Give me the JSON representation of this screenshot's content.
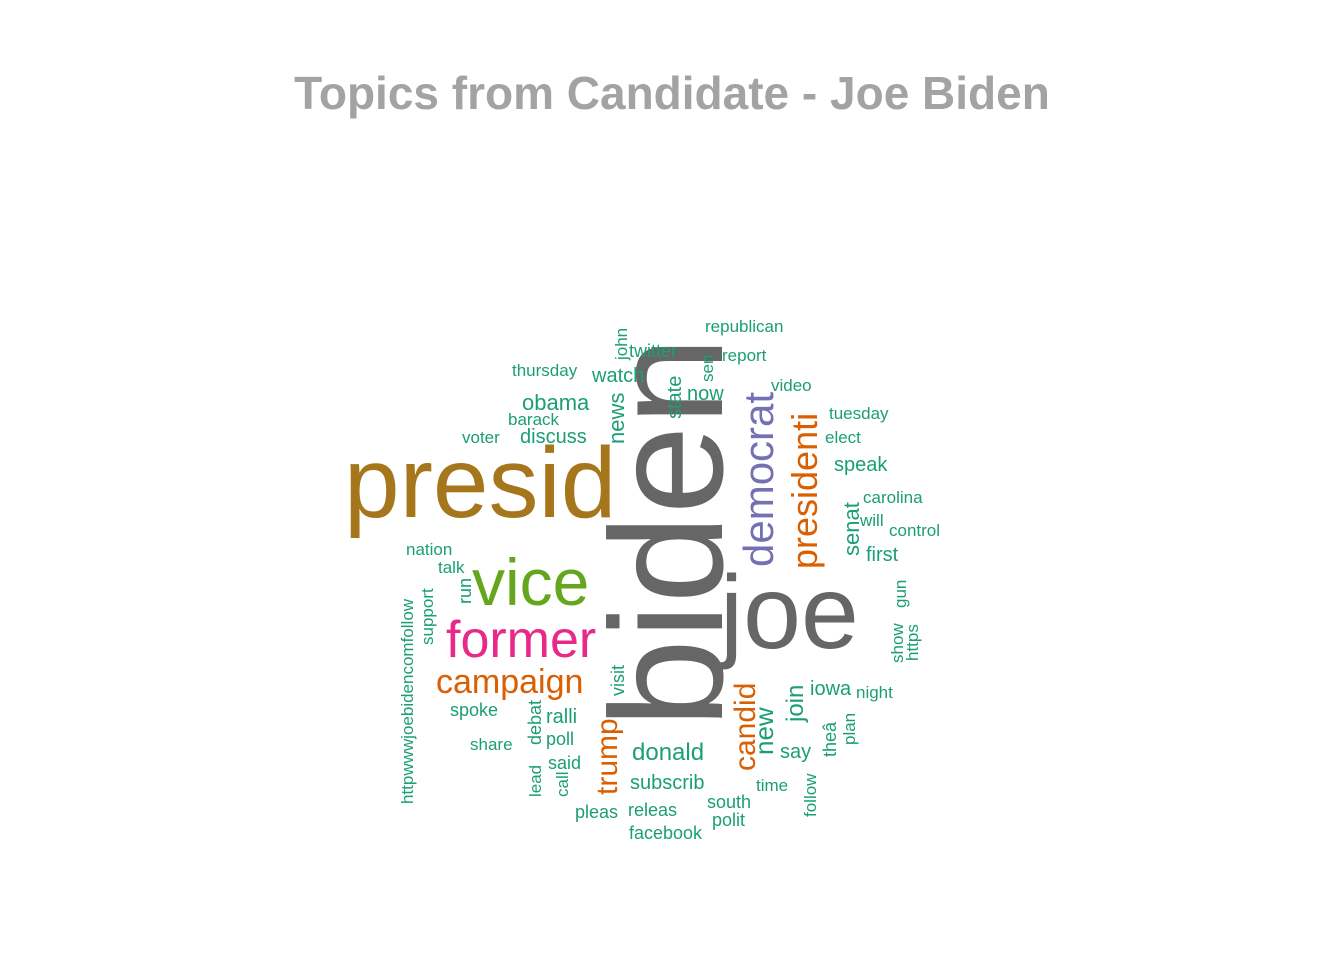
{
  "title": "Topics from Candidate - Joe Biden",
  "chart_data": {
    "type": "wordcloud",
    "title": "Topics from Candidate - Joe Biden",
    "palette": {
      "teal": "#1b9e77",
      "orange": "#d95f02",
      "purple": "#7570b3",
      "magenta": "#e7298a",
      "green": "#66a61e",
      "gold": "#a6761d",
      "gray": "#666666"
    },
    "words": [
      {
        "text": "biden",
        "color": "gray",
        "rotated": true
      },
      {
        "text": "joe",
        "color": "gray",
        "rotated": false
      },
      {
        "text": "presid",
        "color": "gold",
        "rotated": false
      },
      {
        "text": "vice",
        "color": "green",
        "rotated": false
      },
      {
        "text": "former",
        "color": "magenta",
        "rotated": false
      },
      {
        "text": "democrat",
        "color": "purple",
        "rotated": true
      },
      {
        "text": "presidenti",
        "color": "orange",
        "rotated": true
      },
      {
        "text": "campaign",
        "color": "orange",
        "rotated": false
      },
      {
        "text": "trump",
        "color": "orange",
        "rotated": true
      },
      {
        "text": "candid",
        "color": "orange",
        "rotated": true
      },
      {
        "text": "new",
        "color": "teal",
        "rotated": true
      },
      {
        "text": "donald",
        "color": "teal",
        "rotated": false
      },
      {
        "text": "join",
        "color": "teal",
        "rotated": true
      },
      {
        "text": "obama",
        "color": "teal",
        "rotated": false
      },
      {
        "text": "news",
        "color": "teal",
        "rotated": true
      },
      {
        "text": "senat",
        "color": "teal",
        "rotated": true
      },
      {
        "text": "discuss",
        "color": "teal",
        "rotated": false
      },
      {
        "text": "subscrib",
        "color": "teal",
        "rotated": false
      },
      {
        "text": "ralli",
        "color": "teal",
        "rotated": false
      },
      {
        "text": "watch",
        "color": "teal",
        "rotated": false
      },
      {
        "text": "state",
        "color": "teal",
        "rotated": true
      },
      {
        "text": "speak",
        "color": "teal",
        "rotated": false
      },
      {
        "text": "first",
        "color": "teal",
        "rotated": false
      },
      {
        "text": "say",
        "color": "teal",
        "rotated": false
      },
      {
        "text": "iowa",
        "color": "teal",
        "rotated": false
      },
      {
        "text": "now",
        "color": "teal",
        "rotated": false
      },
      {
        "text": "twitter",
        "color": "teal",
        "rotated": false
      },
      {
        "text": "poll",
        "color": "teal",
        "rotated": false
      },
      {
        "text": "said",
        "color": "teal",
        "rotated": false
      },
      {
        "text": "pleas",
        "color": "teal",
        "rotated": false
      },
      {
        "text": "releas",
        "color": "teal",
        "rotated": false
      },
      {
        "text": "south",
        "color": "teal",
        "rotated": false
      },
      {
        "text": "polit",
        "color": "teal",
        "rotated": false
      },
      {
        "text": "facebook",
        "color": "teal",
        "rotated": false
      },
      {
        "text": "visit",
        "color": "teal",
        "rotated": true
      },
      {
        "text": "debat",
        "color": "teal",
        "rotated": true
      },
      {
        "text": "lead",
        "color": "teal",
        "rotated": true
      },
      {
        "text": "call",
        "color": "teal",
        "rotated": true
      },
      {
        "text": "spoke",
        "color": "teal",
        "rotated": false
      },
      {
        "text": "share",
        "color": "teal",
        "rotated": false
      },
      {
        "text": "run",
        "color": "teal",
        "rotated": true
      },
      {
        "text": "talk",
        "color": "teal",
        "rotated": false
      },
      {
        "text": "nation",
        "color": "teal",
        "rotated": false
      },
      {
        "text": "support",
        "color": "teal",
        "rotated": true
      },
      {
        "text": "httpwwwjoebidencomfollow",
        "color": "teal",
        "rotated": true
      },
      {
        "text": "voter",
        "color": "teal",
        "rotated": false
      },
      {
        "text": "barack",
        "color": "teal",
        "rotated": false
      },
      {
        "text": "thursday",
        "color": "teal",
        "rotated": false
      },
      {
        "text": "john",
        "color": "teal",
        "rotated": true
      },
      {
        "text": "sen",
        "color": "teal",
        "rotated": true
      },
      {
        "text": "report",
        "color": "teal",
        "rotated": false
      },
      {
        "text": "republican",
        "color": "teal",
        "rotated": false
      },
      {
        "text": "video",
        "color": "teal",
        "rotated": false
      },
      {
        "text": "tuesday",
        "color": "teal",
        "rotated": false
      },
      {
        "text": "elect",
        "color": "teal",
        "rotated": false
      },
      {
        "text": "carolina",
        "color": "teal",
        "rotated": false
      },
      {
        "text": "will",
        "color": "teal",
        "rotated": false
      },
      {
        "text": "control",
        "color": "teal",
        "rotated": false
      },
      {
        "text": "show",
        "color": "teal",
        "rotated": true
      },
      {
        "text": "gun",
        "color": "teal",
        "rotated": true
      },
      {
        "text": "https",
        "color": "teal",
        "rotated": true
      },
      {
        "text": "night",
        "color": "teal",
        "rotated": false
      },
      {
        "text": "theâ",
        "color": "teal",
        "rotated": true
      },
      {
        "text": "plan",
        "color": "teal",
        "rotated": true
      },
      {
        "text": "time",
        "color": "teal",
        "rotated": false
      },
      {
        "text": "follow",
        "color": "teal",
        "rotated": true
      }
    ]
  }
}
